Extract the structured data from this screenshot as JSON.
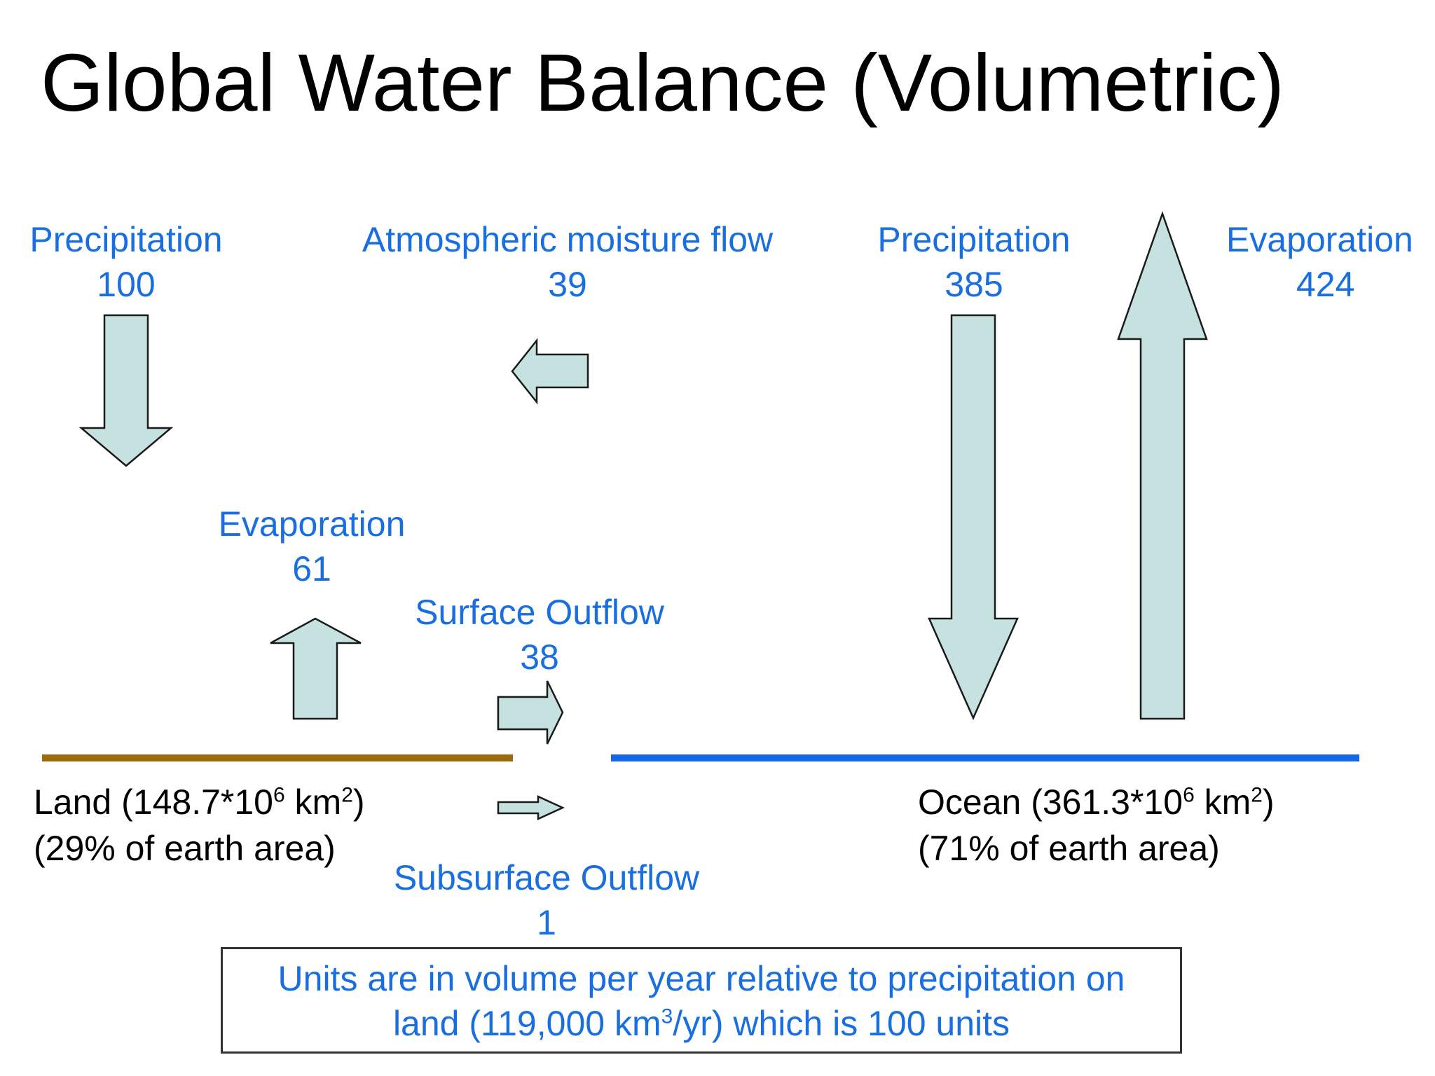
{
  "title": "Global Water Balance (Volumetric)",
  "flows": {
    "land_precipitation": {
      "label": "Precipitation",
      "value": "100"
    },
    "atmospheric_moisture": {
      "label": "Atmospheric moisture flow",
      "value": "39"
    },
    "ocean_precipitation": {
      "label": "Precipitation",
      "value": "385"
    },
    "ocean_evaporation": {
      "label": "Evaporation",
      "value": "424"
    },
    "land_evaporation": {
      "label": "Evaporation",
      "value": "61"
    },
    "surface_outflow": {
      "label": "Surface Outflow",
      "value": "38"
    },
    "subsurface_outflow": {
      "label": "Subsurface Outflow",
      "value": "1"
    }
  },
  "land": {
    "line1_prefix": "Land (148.7*10",
    "line1_exp": "6",
    "line1_mid": " km",
    "line1_exp2": "2",
    "line1_suffix": ")",
    "line2": "(29% of earth area)"
  },
  "ocean": {
    "line1_prefix": "Ocean (361.3*10",
    "line1_exp": "6",
    "line1_mid": " km",
    "line1_exp2": "2",
    "line1_suffix": ")",
    "line2": "(71% of earth area)"
  },
  "note": {
    "line1": "Units are in volume per year relative to precipitation on",
    "line2_prefix": "land (119,000 km",
    "line2_exp": "3",
    "line2_suffix": "/yr) which is 100 units"
  },
  "colors": {
    "land_line": "#9c6a0c",
    "ocean_line": "#1366e8",
    "arrow_fill": "#c5e1e0",
    "label_blue": "#1a6fe0"
  }
}
